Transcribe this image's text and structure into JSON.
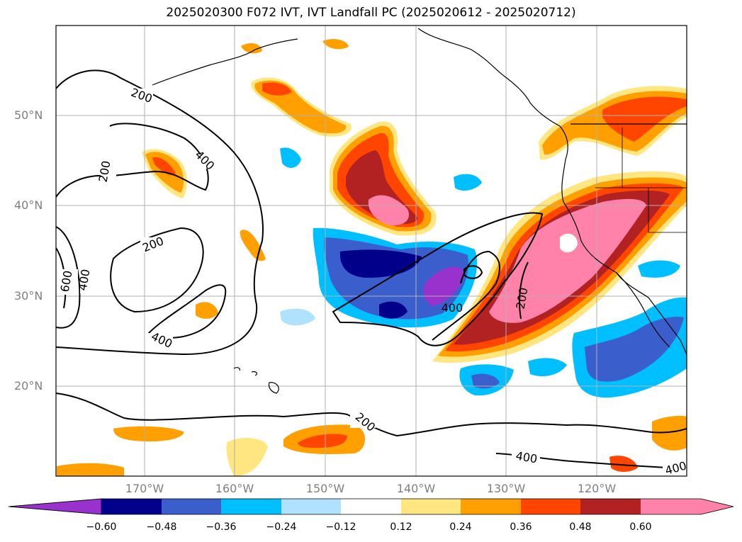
{
  "title": "2025020300 F072 IVT, IVT Landfall PC (2025020612 - 2025020712)",
  "map": {
    "lat_labels": [
      "50°N",
      "40°N",
      "30°N",
      "20°N"
    ],
    "lon_labels": [
      "170°W",
      "160°W",
      "150°W",
      "140°W",
      "130°W",
      "120°W"
    ],
    "contour_labels": [
      "200",
      "400",
      "200",
      "200",
      "600",
      "400",
      "400",
      "400",
      "200",
      "200",
      "400",
      "400"
    ]
  },
  "colorbar": {
    "labels": [
      "−0.60",
      "−0.48",
      "−0.36",
      "−0.24",
      "−0.12",
      "0.12",
      "0.24",
      "0.36",
      "0.48",
      "0.60"
    ],
    "colors": [
      "#9932cc",
      "#00008b",
      "#3a5fcd",
      "#00bfff",
      "#b0e2ff",
      "#ffffff",
      "#ffe680",
      "#ff9f00",
      "#ff4500",
      "#b22222",
      "#ff82ab"
    ]
  }
}
